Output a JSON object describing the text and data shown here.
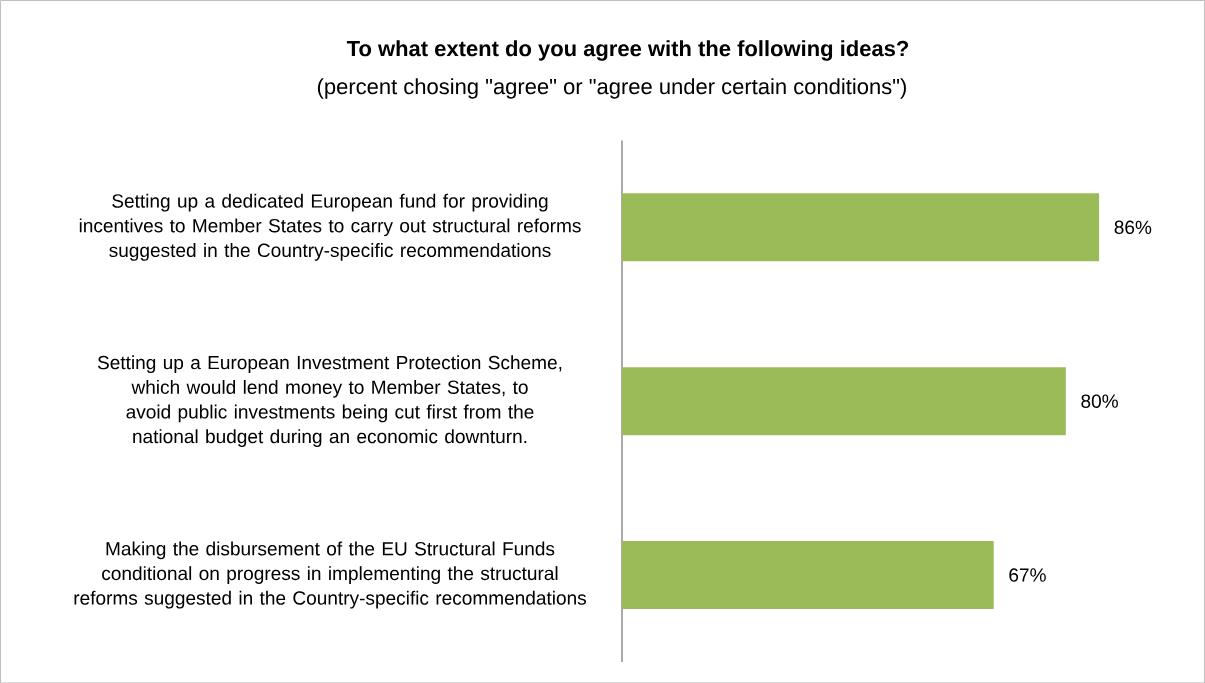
{
  "chart_data": {
    "type": "bar",
    "orientation": "horizontal",
    "title": "To what extent do you agree with the following ideas?",
    "subtitle": "(percent chosing \"agree\" or \"agree under certain conditions\")",
    "categories": [
      "Setting up a dedicated European fund for providing incentives to Member States to carry out structural reforms suggested in the Country-specific recommendations",
      "Setting up a European Investment Protection Scheme, which would lend money to Member States, to avoid public investments being cut first from the national budget during an economic downturn.",
      "Making the disbursement of the EU Structural Funds conditional on progress in implementing the structural reforms suggested in the Country-specific recommendations"
    ],
    "values": [
      86,
      80,
      67
    ],
    "value_labels": [
      "86%",
      "80%",
      "67%"
    ],
    "color": "#9bbb59"
  }
}
